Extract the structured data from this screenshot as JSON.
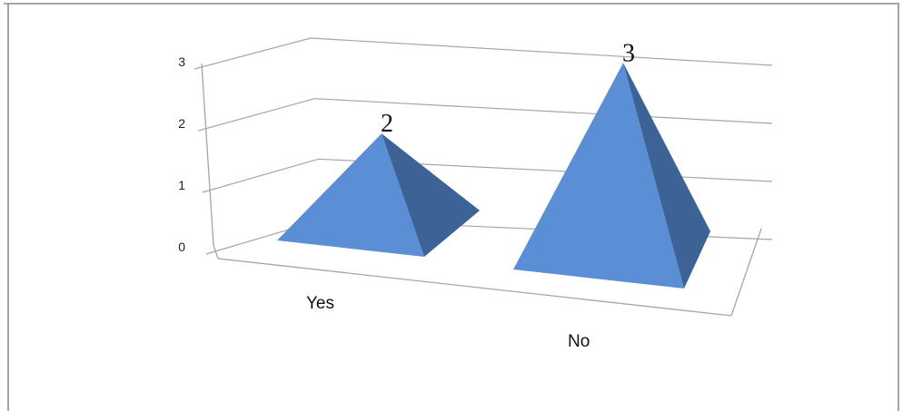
{
  "chart_data": {
    "type": "bar",
    "style": "3d-pyramid",
    "categories": [
      "Yes",
      "No"
    ],
    "values": [
      2,
      3
    ],
    "data_labels": [
      "2",
      "3"
    ],
    "y_ticks": [
      "0",
      "1",
      "2",
      "3"
    ],
    "ylim": [
      0,
      3
    ],
    "grid": true,
    "legend": "none",
    "colors": {
      "pyramid_front": "#5a8fd6",
      "pyramid_side": "#3c6296",
      "gridline": "#a6a6a6"
    }
  }
}
